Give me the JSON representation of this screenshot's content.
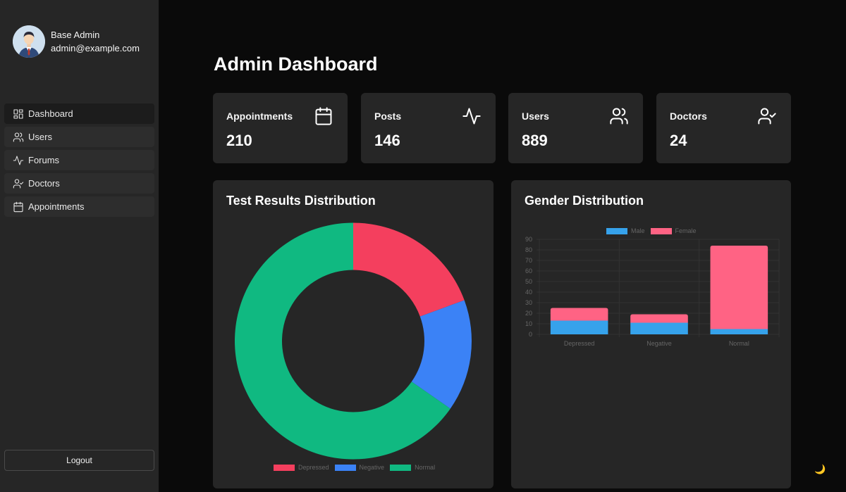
{
  "user": {
    "name": "Base Admin",
    "email": "admin@example.com"
  },
  "nav": {
    "items": [
      {
        "label": "Dashboard",
        "icon": "dashboard-icon",
        "active": true
      },
      {
        "label": "Users",
        "icon": "users-icon",
        "active": false
      },
      {
        "label": "Forums",
        "icon": "activity-icon",
        "active": false
      },
      {
        "label": "Doctors",
        "icon": "user-check-icon",
        "active": false
      },
      {
        "label": "Appointments",
        "icon": "calendar-icon",
        "active": false
      }
    ]
  },
  "logout_label": "Logout",
  "page_title": "Admin Dashboard",
  "stats": [
    {
      "label": "Appointments",
      "value": "210",
      "icon": "calendar-icon"
    },
    {
      "label": "Posts",
      "value": "146",
      "icon": "activity-icon"
    },
    {
      "label": "Users",
      "value": "889",
      "icon": "users-icon"
    },
    {
      "label": "Doctors",
      "value": "24",
      "icon": "user-check-icon"
    }
  ],
  "panels": {
    "test_results_title": "Test Results Distribution",
    "gender_title": "Gender Distribution"
  },
  "theme_toggle_icon": "moon-icon",
  "chart_data": [
    {
      "type": "pie",
      "variant": "doughnut",
      "title": "Test Results Distribution",
      "labels": [
        "Depressed",
        "Negative",
        "Normal"
      ],
      "values": [
        38,
        30,
        128
      ],
      "colors": [
        "#f43f5e",
        "#3b82f6",
        "#10b981"
      ],
      "legend_position": "bottom"
    },
    {
      "type": "bar",
      "stacked": true,
      "title": "Gender Distribution",
      "categories": [
        "Depressed",
        "Negative",
        "Normal"
      ],
      "series": [
        {
          "name": "Male",
          "values": [
            13,
            11,
            5
          ],
          "color": "#36a2eb"
        },
        {
          "name": "Female",
          "values": [
            12,
            8,
            79
          ],
          "color": "#ff6384"
        }
      ],
      "ylim": [
        0,
        90
      ],
      "yticks": [
        0,
        10,
        20,
        30,
        40,
        50,
        60,
        70,
        80,
        90
      ],
      "grid": true,
      "legend_position": "top"
    }
  ]
}
